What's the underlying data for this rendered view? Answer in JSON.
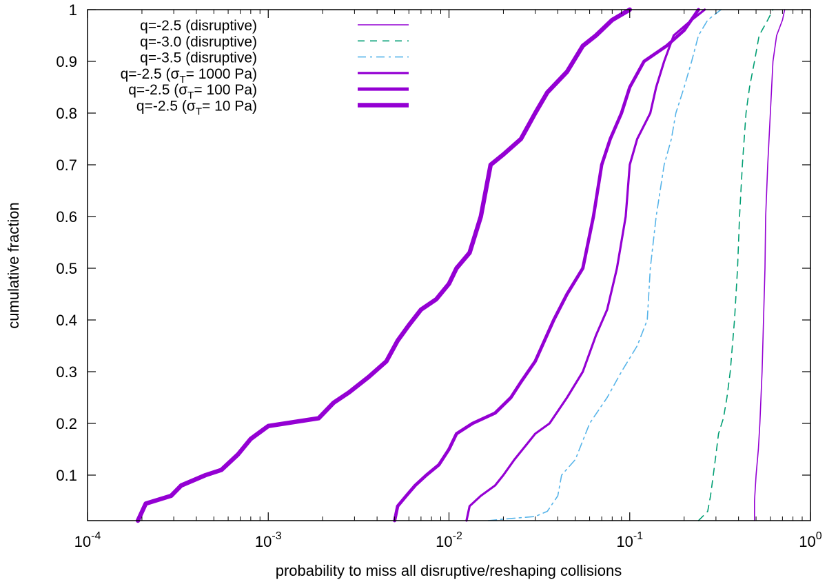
{
  "chart_data": {
    "type": "line",
    "xlabel": "probability to miss all disruptive/reshaping collisions",
    "ylabel": "cumulative fraction",
    "x_scale": "log",
    "xlim": [
      0.0001,
      1
    ],
    "ylim": [
      0.012,
      1
    ],
    "x_ticks": [
      {
        "value": 0.0001,
        "base": "10",
        "exp": "-4"
      },
      {
        "value": 0.001,
        "base": "10",
        "exp": "-3"
      },
      {
        "value": 0.01,
        "base": "10",
        "exp": "-2"
      },
      {
        "value": 0.1,
        "base": "10",
        "exp": "-1"
      },
      {
        "value": 1,
        "base": "10",
        "exp": "0"
      }
    ],
    "y_ticks": [
      {
        "value": 0.1,
        "label": "0.1"
      },
      {
        "value": 0.2,
        "label": "0.2"
      },
      {
        "value": 0.3,
        "label": "0.3"
      },
      {
        "value": 0.4,
        "label": "0.4"
      },
      {
        "value": 0.5,
        "label": "0.5"
      },
      {
        "value": 0.6,
        "label": "0.6"
      },
      {
        "value": 0.7,
        "label": "0.7"
      },
      {
        "value": 0.8,
        "label": "0.8"
      },
      {
        "value": 0.9,
        "label": "0.9"
      },
      {
        "value": 1,
        "label": "1"
      }
    ],
    "legend_position": "top-left",
    "series": [
      {
        "name": "q=-2.5 (disruptive)",
        "legend_parts": {
          "main": "q=-2.5 (disruptive)"
        },
        "color": "#9400d3",
        "weight": "thin",
        "dash": "none",
        "points": [
          [
            0.49,
            0.012
          ],
          [
            0.49,
            0.05
          ],
          [
            0.5,
            0.1
          ],
          [
            0.515,
            0.15
          ],
          [
            0.525,
            0.2
          ],
          [
            0.54,
            0.3
          ],
          [
            0.55,
            0.4
          ],
          [
            0.56,
            0.5
          ],
          [
            0.565,
            0.6
          ],
          [
            0.58,
            0.7
          ],
          [
            0.6,
            0.8
          ],
          [
            0.62,
            0.9
          ],
          [
            0.65,
            0.95
          ],
          [
            0.7,
            0.98
          ],
          [
            0.72,
            1.0
          ]
        ]
      },
      {
        "name": "q=-3.0 (disruptive)",
        "legend_parts": {
          "main": "q=-3.0 (disruptive)"
        },
        "color": "#009e73",
        "weight": "thin",
        "dash": "dashed",
        "points": [
          [
            0.24,
            0.012
          ],
          [
            0.27,
            0.03
          ],
          [
            0.28,
            0.06
          ],
          [
            0.29,
            0.1
          ],
          [
            0.3,
            0.14
          ],
          [
            0.31,
            0.18
          ],
          [
            0.33,
            0.21
          ],
          [
            0.345,
            0.25
          ],
          [
            0.36,
            0.3
          ],
          [
            0.38,
            0.4
          ],
          [
            0.395,
            0.5
          ],
          [
            0.405,
            0.6
          ],
          [
            0.42,
            0.7
          ],
          [
            0.44,
            0.8
          ],
          [
            0.46,
            0.85
          ],
          [
            0.49,
            0.9
          ],
          [
            0.52,
            0.95
          ],
          [
            0.58,
            0.98
          ],
          [
            0.62,
            1.0
          ]
        ]
      },
      {
        "name": "q=-3.5 (disruptive)",
        "legend_parts": {
          "main": "q=-3.5 (disruptive)"
        },
        "color": "#56b4e9",
        "weight": "thin",
        "dash": "dashdot",
        "points": [
          [
            0.0165,
            0.012
          ],
          [
            0.02,
            0.015
          ],
          [
            0.03,
            0.02
          ],
          [
            0.035,
            0.03
          ],
          [
            0.04,
            0.06
          ],
          [
            0.042,
            0.1
          ],
          [
            0.05,
            0.13
          ],
          [
            0.06,
            0.2
          ],
          [
            0.075,
            0.25
          ],
          [
            0.09,
            0.3
          ],
          [
            0.11,
            0.35
          ],
          [
            0.125,
            0.4
          ],
          [
            0.13,
            0.5
          ],
          [
            0.14,
            0.6
          ],
          [
            0.155,
            0.7
          ],
          [
            0.17,
            0.75
          ],
          [
            0.18,
            0.8
          ],
          [
            0.2,
            0.85
          ],
          [
            0.22,
            0.9
          ],
          [
            0.24,
            0.95
          ],
          [
            0.27,
            0.98
          ],
          [
            0.32,
            1.0
          ]
        ]
      },
      {
        "name": "q=-2.5 (σT= 1000 Pa)",
        "legend_parts": {
          "pre": "q=-2.5 (σ",
          "sub": "T",
          "post": "= 1000 Pa)"
        },
        "color": "#9400d3",
        "weight": "medium",
        "dash": "none",
        "points": [
          [
            0.0125,
            0.012
          ],
          [
            0.013,
            0.04
          ],
          [
            0.015,
            0.06
          ],
          [
            0.018,
            0.08
          ],
          [
            0.02,
            0.1
          ],
          [
            0.023,
            0.13
          ],
          [
            0.027,
            0.16
          ],
          [
            0.03,
            0.18
          ],
          [
            0.036,
            0.2
          ],
          [
            0.045,
            0.25
          ],
          [
            0.055,
            0.3
          ],
          [
            0.065,
            0.37
          ],
          [
            0.075,
            0.42
          ],
          [
            0.085,
            0.5
          ],
          [
            0.095,
            0.6
          ],
          [
            0.1,
            0.7
          ],
          [
            0.11,
            0.75
          ],
          [
            0.13,
            0.8
          ],
          [
            0.14,
            0.85
          ],
          [
            0.155,
            0.9
          ],
          [
            0.175,
            0.95
          ],
          [
            0.22,
            0.98
          ],
          [
            0.26,
            1.0
          ]
        ]
      },
      {
        "name": "q=-2.5 (σT= 100   Pa)",
        "legend_parts": {
          "pre": "q=-2.5 (σ",
          "sub": "T",
          "post": "= 100   Pa)"
        },
        "color": "#9400d3",
        "weight": "thick",
        "dash": "none",
        "points": [
          [
            0.005,
            0.012
          ],
          [
            0.0052,
            0.04
          ],
          [
            0.0058,
            0.06
          ],
          [
            0.0065,
            0.08
          ],
          [
            0.0075,
            0.1
          ],
          [
            0.0088,
            0.12
          ],
          [
            0.01,
            0.15
          ],
          [
            0.011,
            0.18
          ],
          [
            0.0135,
            0.2
          ],
          [
            0.018,
            0.22
          ],
          [
            0.022,
            0.25
          ],
          [
            0.025,
            0.28
          ],
          [
            0.03,
            0.32
          ],
          [
            0.038,
            0.4
          ],
          [
            0.045,
            0.45
          ],
          [
            0.055,
            0.5
          ],
          [
            0.063,
            0.6
          ],
          [
            0.07,
            0.7
          ],
          [
            0.078,
            0.75
          ],
          [
            0.09,
            0.8
          ],
          [
            0.1,
            0.85
          ],
          [
            0.12,
            0.9
          ],
          [
            0.16,
            0.93
          ],
          [
            0.2,
            0.96
          ],
          [
            0.24,
            1.0
          ]
        ]
      },
      {
        "name": "q=-2.5 (σT= 10     Pa)",
        "legend_parts": {
          "pre": "q=-2.5 (σ",
          "sub": "T",
          "post": "= 10     Pa)"
        },
        "color": "#9400d3",
        "weight": "xthick",
        "dash": "none",
        "points": [
          [
            0.00019,
            0.012
          ],
          [
            0.00021,
            0.045
          ],
          [
            0.00029,
            0.06
          ],
          [
            0.00033,
            0.08
          ],
          [
            0.00045,
            0.1
          ],
          [
            0.00055,
            0.11
          ],
          [
            0.00068,
            0.14
          ],
          [
            0.0008,
            0.17
          ],
          [
            0.001,
            0.195
          ],
          [
            0.0019,
            0.21
          ],
          [
            0.0023,
            0.24
          ],
          [
            0.0028,
            0.26
          ],
          [
            0.0036,
            0.29
          ],
          [
            0.0045,
            0.32
          ],
          [
            0.0052,
            0.36
          ],
          [
            0.006,
            0.39
          ],
          [
            0.007,
            0.42
          ],
          [
            0.0085,
            0.44
          ],
          [
            0.01,
            0.47
          ],
          [
            0.011,
            0.5
          ],
          [
            0.013,
            0.53
          ],
          [
            0.015,
            0.6
          ],
          [
            0.017,
            0.7
          ],
          [
            0.02,
            0.72
          ],
          [
            0.025,
            0.75
          ],
          [
            0.03,
            0.8
          ],
          [
            0.035,
            0.84
          ],
          [
            0.045,
            0.88
          ],
          [
            0.055,
            0.93
          ],
          [
            0.065,
            0.95
          ],
          [
            0.08,
            0.98
          ],
          [
            0.1,
            1.0
          ]
        ]
      }
    ]
  }
}
